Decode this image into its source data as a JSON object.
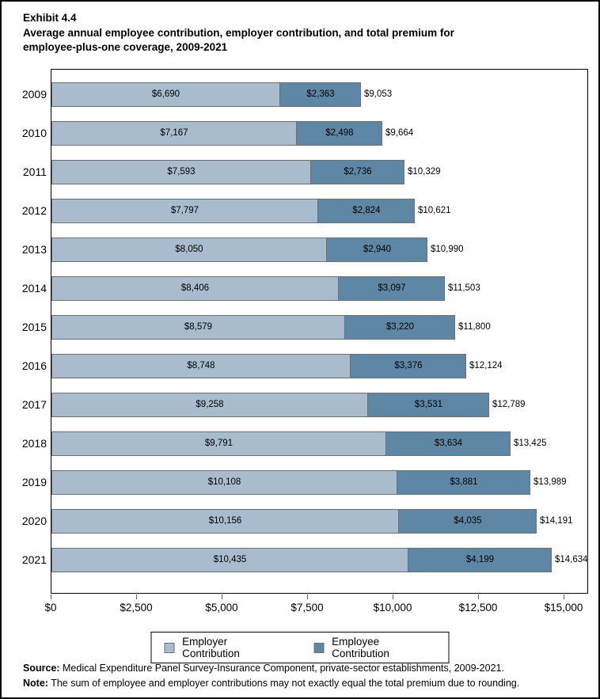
{
  "title": {
    "exhibit": "Exhibit 4.4",
    "line1": "Average annual employee contribution, employer contribution, and total premium for",
    "line2": "employee-plus-one coverage, 2009-2021"
  },
  "chart_data": {
    "type": "bar",
    "orientation": "horizontal",
    "stacked": true,
    "grid": false,
    "categories": [
      "2009",
      "2010",
      "2011",
      "2012",
      "2013",
      "2014",
      "2015",
      "2016",
      "2017",
      "2018",
      "2019",
      "2020",
      "2021"
    ],
    "series": [
      {
        "name": "Employer Contribution",
        "color": "#a8bccd",
        "values": [
          6690,
          7167,
          7593,
          7797,
          8050,
          8406,
          8579,
          8748,
          9258,
          9791,
          10108,
          10156,
          10435
        ]
      },
      {
        "name": "Employee Contribution",
        "color": "#5e87a5",
        "values": [
          2363,
          2498,
          2736,
          2824,
          2940,
          3097,
          3220,
          3376,
          3531,
          3634,
          3881,
          4035,
          4199
        ]
      }
    ],
    "totals": [
      9053,
      9664,
      10329,
      10621,
      10990,
      11503,
      11800,
      12124,
      12789,
      13425,
      13989,
      14191,
      14634
    ],
    "labels": {
      "employer": [
        "$6,690",
        "$7,167",
        "$7,593",
        "$7,797",
        "$8,050",
        "$8,406",
        "$8,579",
        "$8,748",
        "$9,258",
        "$9,791",
        "$10,108",
        "$10,156",
        "$10,435"
      ],
      "employee": [
        "$2,363",
        "$2,498",
        "$2,736",
        "$2,824",
        "$2,940",
        "$3,097",
        "$3,220",
        "$3,376",
        "$3,531",
        "$3,634",
        "$3,881",
        "$4,035",
        "$4,199"
      ],
      "totals": [
        "$9,053",
        "$9,664",
        "$10,329",
        "$10,621",
        "$10,990",
        "$11,503",
        "$11,800",
        "$12,124",
        "$12,789",
        "$13,425",
        "$13,989",
        "$14,191",
        "$14,634"
      ]
    },
    "x_ticks": [
      "$0",
      "$2,500",
      "$5,000",
      "$7,500",
      "$10,000",
      "$12,500",
      "$15,000"
    ],
    "x_tick_values": [
      0,
      2500,
      5000,
      7500,
      10000,
      12500,
      15000
    ],
    "xlim": [
      0,
      15700
    ],
    "legend_position": "bottom",
    "bar_border_color": "#6e6e6e"
  },
  "legend": {
    "items": [
      {
        "label": "Employer Contribution",
        "color": "#a8bccd"
      },
      {
        "label": "Employee Contribution",
        "color": "#5e87a5"
      }
    ]
  },
  "footer": {
    "source_label": "Source:",
    "source_text": " Medical Expenditure Panel Survey-Insurance Component, private-sector establishments, 2009-2021.",
    "note_label": "Note:",
    "note_text": " The sum of employee and employer contributions may not exactly equal the total premium due to rounding."
  }
}
